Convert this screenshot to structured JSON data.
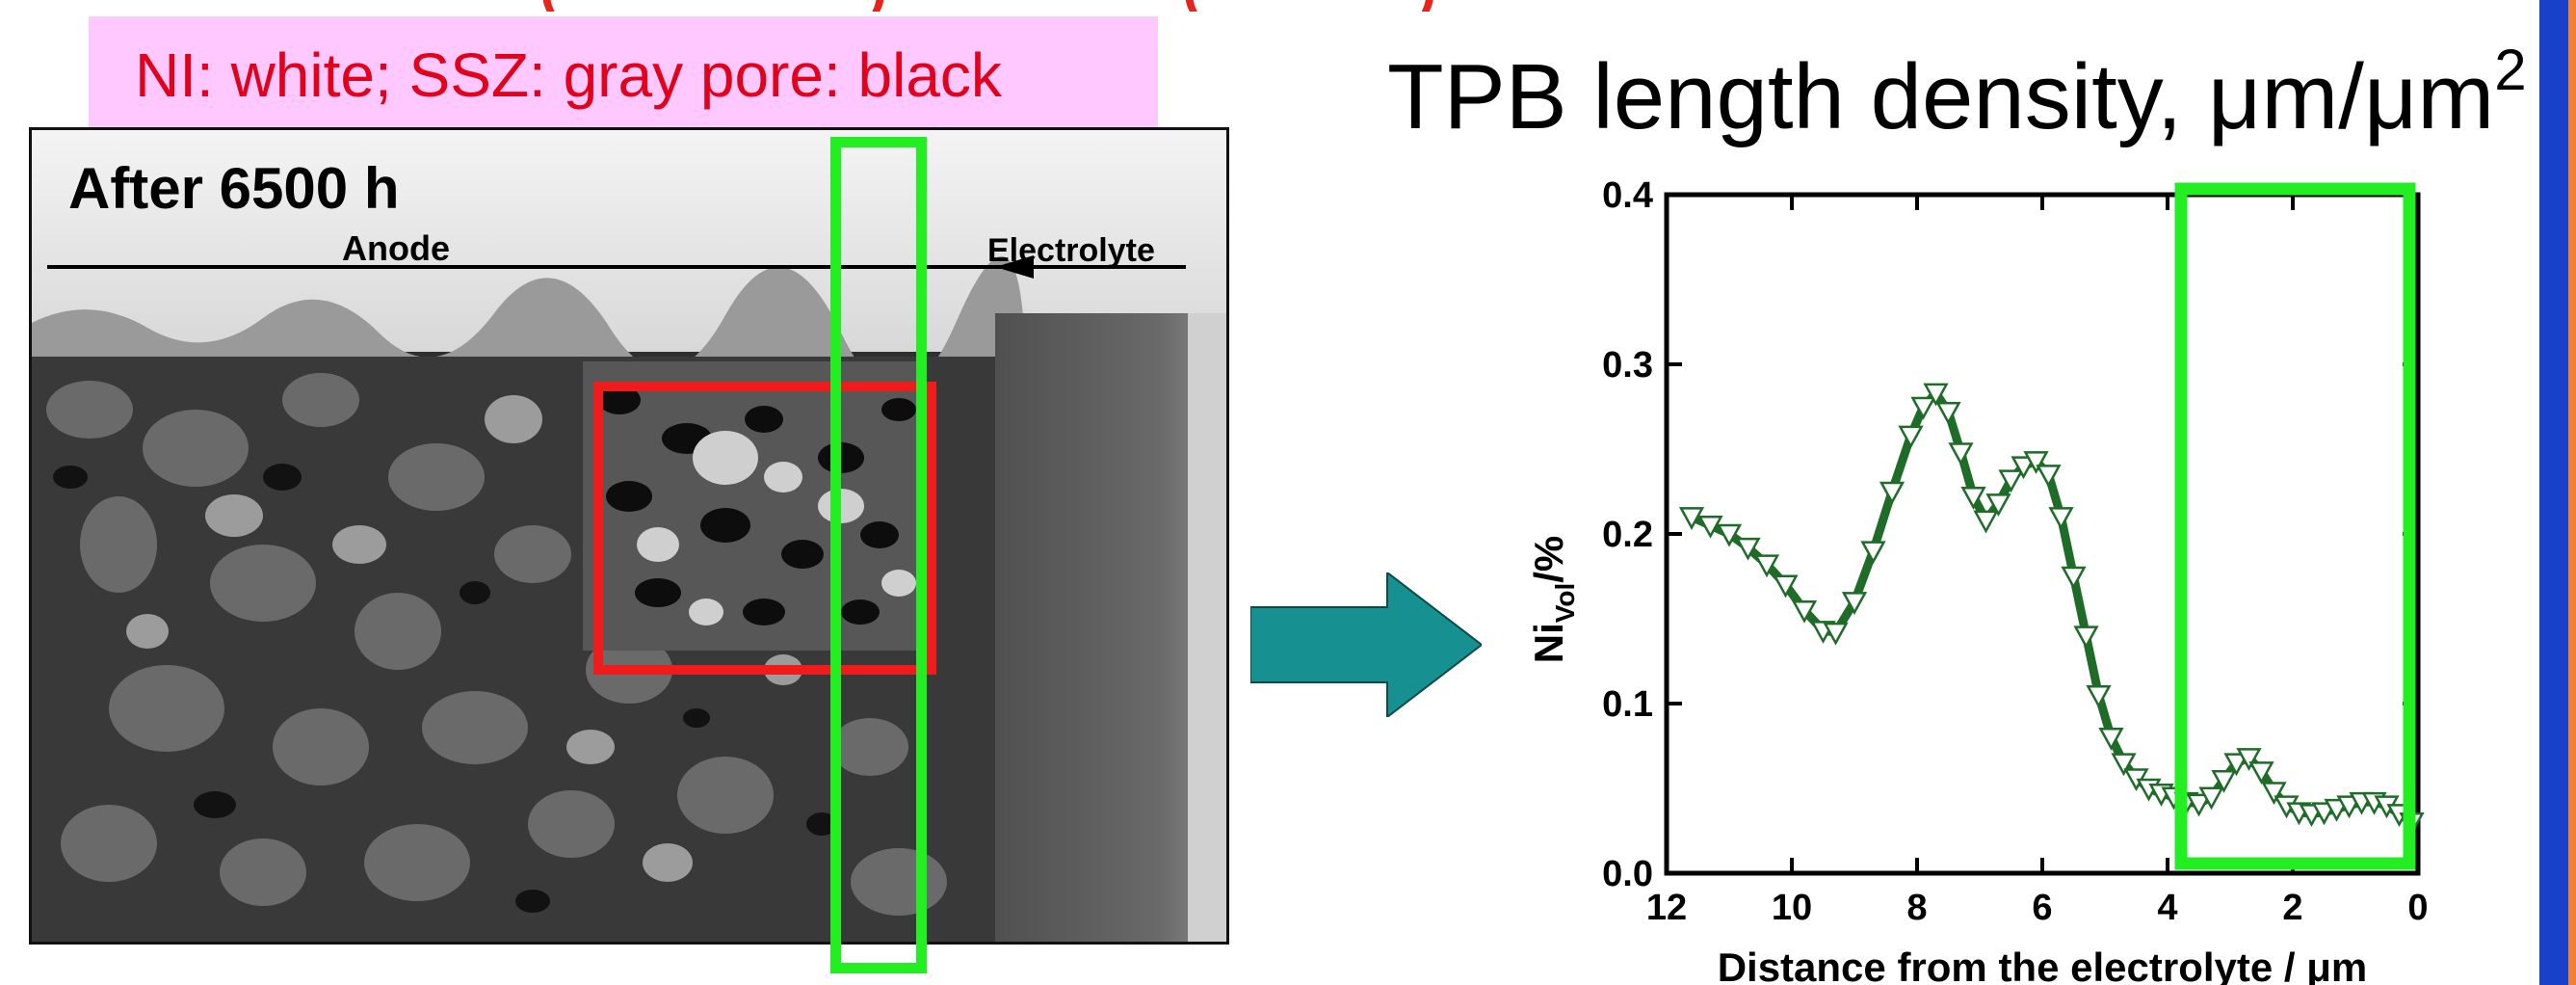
{
  "header": {
    "top_cut_title": "(                    )                   (              )"
  },
  "caption": {
    "text": "NI: white; SSZ: gray  pore: black"
  },
  "micrograph": {
    "after_label": "After 6500 h",
    "anode_label": "Anode",
    "electrolyte_label": "Electrolyte"
  },
  "colors": {
    "caption_bg": "#ffc8ff",
    "caption_text": "#e3001b",
    "highlight_green": "#22ee22",
    "highlight_red": "#ee1c1c",
    "arrow_teal": "#169090",
    "series_line": "#1f6b28",
    "right_edge_blue": "#1840c8",
    "right_edge_orange": "#f08030"
  },
  "tpb_title": {
    "text": "TPB length density, μm/μm",
    "superscript": "2"
  },
  "chart_data": {
    "type": "line",
    "title": "",
    "xlabel": "Distance from the electrolyte / μm",
    "ylabel": "Ni",
    "ylabel_sub": "Vol",
    "ylabel_suffix": "/%",
    "xlim": [
      12,
      0
    ],
    "ylim": [
      0.0,
      0.4
    ],
    "x_ticks": [
      12,
      10,
      8,
      6,
      4,
      2,
      0
    ],
    "y_ticks": [
      "0.0",
      "0.1",
      "0.2",
      "0.3",
      "0.4"
    ],
    "grid": false,
    "marker": "open-triangle-down",
    "series": [
      {
        "x": [
          11.6,
          11.3,
          11.0,
          10.7,
          10.4,
          10.1,
          9.8,
          9.5,
          9.3,
          9.0,
          8.7,
          8.4,
          8.1,
          7.9,
          7.7,
          7.5,
          7.3,
          7.1,
          6.9,
          6.7,
          6.5,
          6.3,
          6.1,
          5.9,
          5.7,
          5.5,
          5.3,
          5.1,
          4.9,
          4.7,
          4.5,
          4.3,
          4.1,
          3.9,
          3.7,
          3.5,
          3.3,
          3.1,
          2.9,
          2.7,
          2.5,
          2.3,
          2.1,
          1.9,
          1.7,
          1.5,
          1.3,
          1.1,
          0.9,
          0.7,
          0.5,
          0.3,
          0.1
        ],
        "y": [
          0.21,
          0.205,
          0.2,
          0.192,
          0.182,
          0.17,
          0.155,
          0.143,
          0.142,
          0.16,
          0.19,
          0.225,
          0.258,
          0.275,
          0.283,
          0.272,
          0.248,
          0.222,
          0.208,
          0.218,
          0.232,
          0.24,
          0.243,
          0.235,
          0.21,
          0.175,
          0.14,
          0.105,
          0.08,
          0.065,
          0.056,
          0.05,
          0.047,
          0.045,
          0.042,
          0.041,
          0.045,
          0.055,
          0.065,
          0.068,
          0.06,
          0.048,
          0.04,
          0.036,
          0.035,
          0.036,
          0.038,
          0.04,
          0.042,
          0.042,
          0.04,
          0.035,
          0.03
        ]
      }
    ]
  }
}
